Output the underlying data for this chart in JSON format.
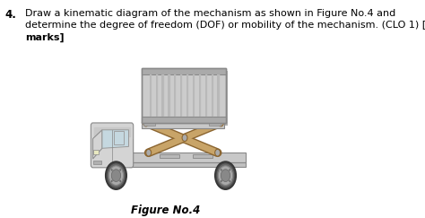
{
  "background_color": "#ffffff",
  "question_number": "4.",
  "question_text_line1": "Draw a kinematic diagram of the mechanism as shown in Figure No.4 and",
  "question_text_line2": "determine the degree of freedom (DOF) or mobility of the mechanism. (CLO 1) [10",
  "question_text_line3": "marks]",
  "figure_label": "Figure No.4",
  "truck_body_color": "#d4d4d4",
  "truck_outline_color": "#888888",
  "container_color": "#cccccc",
  "container_dark_color": "#aaaaaa",
  "scissor_color": "#c8a468",
  "scissor_outline": "#8B6530",
  "wheel_dark": "#555555",
  "wheel_mid": "#888888",
  "wheel_light": "#bbbbbb",
  "chassis_color": "#c0c0c0",
  "bed_color": "#c8c8c8"
}
